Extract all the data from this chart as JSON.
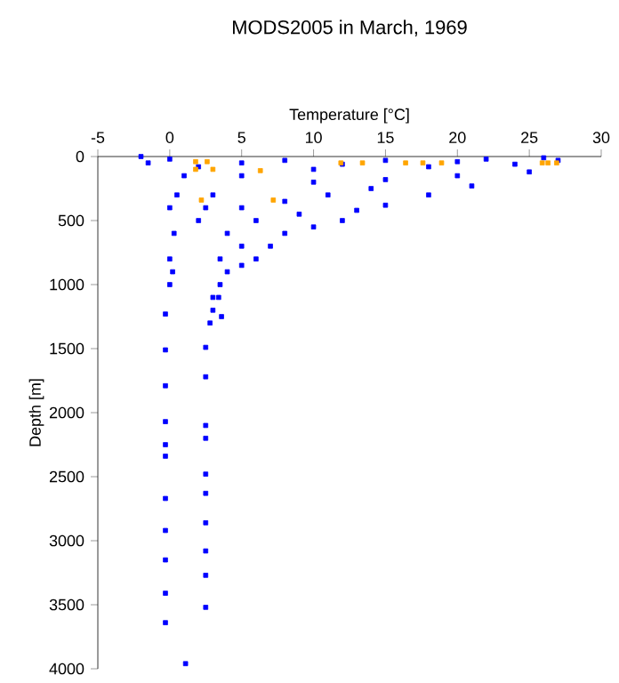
{
  "chart_data": {
    "type": "scatter",
    "title": "MODS2005 in March, 1969",
    "xlabel": "Temperature [°C]",
    "ylabel": "Depth [m]",
    "xlim": [
      -5,
      30
    ],
    "ylim": [
      4000,
      0
    ],
    "xticks": [
      -5,
      0,
      5,
      10,
      15,
      20,
      25,
      30
    ],
    "yticks": [
      0,
      500,
      1000,
      1500,
      2000,
      2500,
      3000,
      3500,
      4000
    ],
    "grid": false,
    "marker": "square",
    "series": [
      {
        "color": "#0000ff",
        "x": [
          -2,
          -1.5,
          0,
          2,
          5,
          8,
          10,
          12,
          15,
          18,
          20,
          22,
          24,
          26,
          27,
          25,
          20,
          15,
          10,
          5,
          1,
          21,
          18,
          15,
          13,
          12,
          10,
          8,
          7,
          6,
          5,
          4,
          3.5,
          3,
          3,
          2.8,
          3,
          5,
          8,
          11,
          14,
          6,
          9,
          4,
          5,
          3.5,
          2,
          2.5,
          0.5,
          0,
          0.3,
          0,
          0.2,
          0,
          -0.3,
          -0.3,
          -0.3,
          -0.3,
          -0.3,
          -0.3,
          -0.3,
          -0.3,
          -0.3,
          -0.3,
          -0.3,
          2.5,
          2.5,
          2.5,
          2.5,
          2.5,
          2.5,
          2.5,
          2.5,
          2.5,
          2.5,
          1.1,
          3.4,
          3.6
        ],
        "values": [
          0,
          50,
          20,
          80,
          50,
          30,
          100,
          60,
          30,
          80,
          40,
          20,
          60,
          10,
          30,
          120,
          150,
          180,
          200,
          150,
          150,
          230,
          300,
          380,
          420,
          500,
          550,
          600,
          700,
          800,
          850,
          900,
          1000,
          1100,
          1200,
          1300,
          300,
          400,
          350,
          300,
          250,
          500,
          450,
          600,
          700,
          800,
          500,
          400,
          300,
          400,
          600,
          800,
          900,
          1000,
          1230,
          1510,
          1790,
          2070,
          2250,
          2340,
          2670,
          2920,
          3150,
          3410,
          3640,
          1490,
          1720,
          2100,
          2200,
          2480,
          2630,
          2860,
          3080,
          3270,
          3520,
          3960,
          1100,
          1250
        ]
      },
      {
        "color": "#ffa500",
        "x": [
          1.8,
          2.6,
          3.0,
          6.3,
          11.9,
          13.4,
          16.4,
          17.6,
          18.9,
          25.9,
          26.3,
          26.9,
          2.2,
          7.2,
          1.8
        ],
        "values": [
          40,
          40,
          100,
          110,
          50,
          50,
          50,
          50,
          50,
          50,
          50,
          50,
          340,
          340,
          100
        ]
      }
    ]
  }
}
